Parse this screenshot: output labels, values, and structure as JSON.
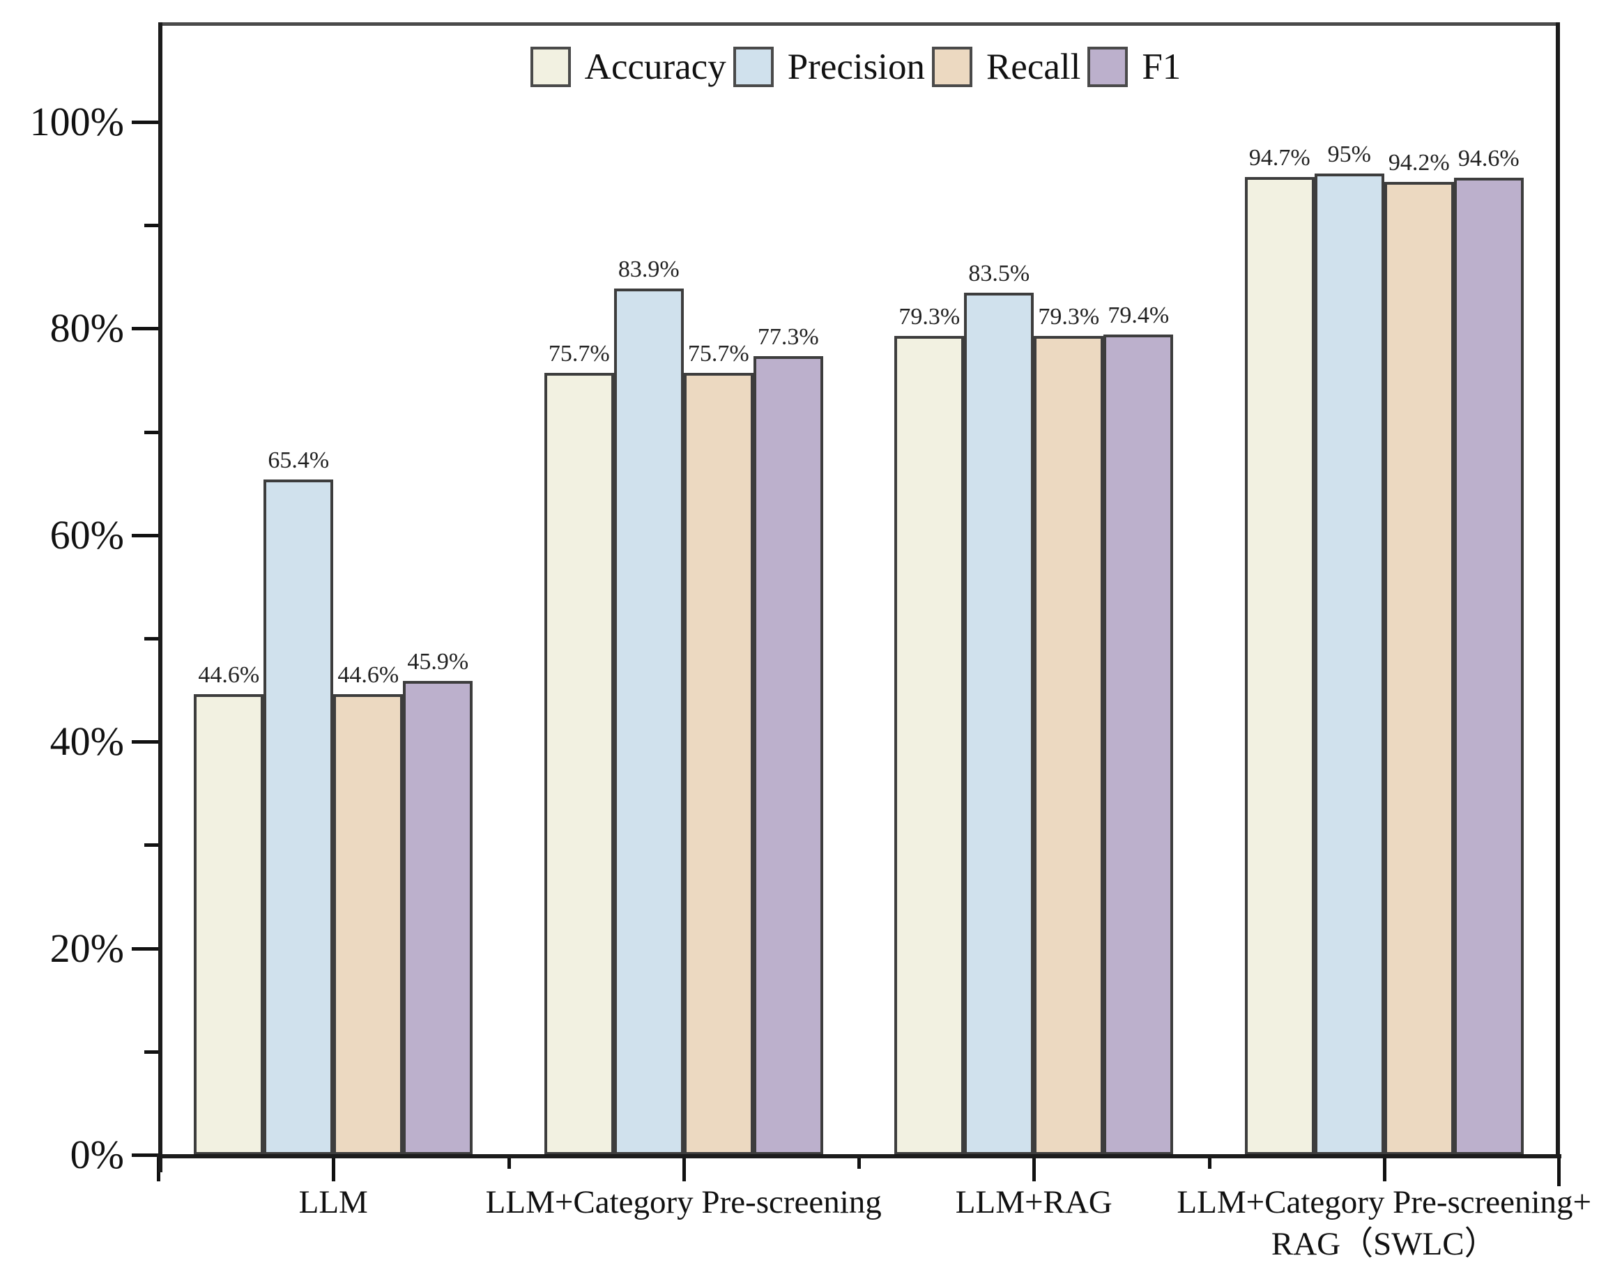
{
  "chart_data": {
    "type": "bar",
    "title": "",
    "xlabel": "",
    "ylabel": "",
    "grid": false,
    "legend_position": "top-center",
    "ylim": [
      0,
      110
    ],
    "yticks_major": [
      0,
      20,
      40,
      60,
      80,
      100
    ],
    "ytick_labels": [
      "0%",
      "20%",
      "40%",
      "60%",
      "80%",
      "100%"
    ],
    "yticks_minor": [
      10,
      30,
      50,
      70,
      90
    ],
    "categories": [
      {
        "lines": [
          "LLM"
        ]
      },
      {
        "lines": [
          "LLM+Category Pre-screening"
        ]
      },
      {
        "lines": [
          "LLM+RAG"
        ]
      },
      {
        "lines": [
          "LLM+Category Pre-screening+",
          "RAG（SWLC）"
        ]
      }
    ],
    "series": [
      {
        "name": "Accuracy",
        "color": "#f2f1e1",
        "values": [
          44.6,
          75.7,
          79.3,
          94.7
        ],
        "labels": [
          "44.6%",
          "75.7%",
          "79.3%",
          "94.7%"
        ]
      },
      {
        "name": "Precision",
        "color": "#d0e1ed",
        "values": [
          65.4,
          83.9,
          83.5,
          95.0
        ],
        "labels": [
          "65.4%",
          "83.9%",
          "83.5%",
          "95%"
        ]
      },
      {
        "name": "Recall",
        "color": "#ecd9c1",
        "values": [
          44.6,
          75.7,
          79.3,
          94.2
        ],
        "labels": [
          "44.6%",
          "75.7%",
          "79.3%",
          "94.2%"
        ]
      },
      {
        "name": "F1",
        "color": "#bcb0cc",
        "values": [
          45.9,
          77.3,
          79.4,
          94.6
        ],
        "labels": [
          "45.9%",
          "77.3%",
          "79.4%",
          "94.6%"
        ]
      }
    ]
  }
}
